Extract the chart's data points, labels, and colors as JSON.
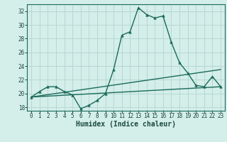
{
  "title": "",
  "xlabel": "Humidex (Indice chaleur)",
  "background_color": "#d4eeea",
  "grid_color": "#b8d8d2",
  "line_color": "#1a6b5a",
  "xlim": [
    -0.5,
    23.5
  ],
  "ylim": [
    17.5,
    33.0
  ],
  "xticks": [
    0,
    1,
    2,
    3,
    4,
    5,
    6,
    7,
    8,
    9,
    10,
    11,
    12,
    13,
    14,
    15,
    16,
    17,
    18,
    19,
    20,
    21,
    22,
    23
  ],
  "yticks": [
    18,
    20,
    22,
    24,
    26,
    28,
    30,
    32
  ],
  "humidex_x": [
    0,
    1,
    2,
    3,
    4,
    5,
    6,
    7,
    8,
    9,
    10,
    11,
    12,
    13,
    14,
    15,
    16,
    17,
    18,
    19,
    20,
    21,
    22,
    23
  ],
  "humidex_y": [
    19.5,
    20.3,
    21.0,
    21.0,
    20.3,
    19.8,
    17.8,
    18.3,
    19.0,
    20.0,
    23.5,
    28.5,
    29.0,
    32.5,
    31.5,
    31.0,
    31.3,
    27.5,
    24.5,
    23.0,
    21.2,
    21.0,
    22.5,
    21.0
  ],
  "line1_x": [
    0,
    23
  ],
  "line1_y": [
    19.5,
    21.0
  ],
  "line2_x": [
    0,
    23
  ],
  "line2_y": [
    19.5,
    23.5
  ],
  "fontsize_ticks": 5.5,
  "fontsize_xlabel": 7.0
}
